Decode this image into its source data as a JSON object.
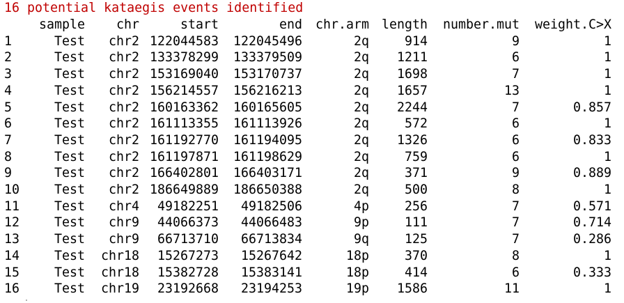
{
  "console": {
    "message": "16 potential kataegis events identified",
    "message_color": "#c00000",
    "text_color": "#000000",
    "background": "#ffffff",
    "table": {
      "columns": [
        "",
        "sample",
        "chr",
        "start",
        "end",
        "chr.arm",
        "length",
        "number.mut",
        "weight.C>X"
      ],
      "rows": [
        [
          "1",
          "Test",
          "chr2",
          "122044583",
          "122045496",
          "2q",
          "914",
          "9",
          "1"
        ],
        [
          "2",
          "Test",
          "chr2",
          "133378299",
          "133379509",
          "2q",
          "1211",
          "6",
          "1"
        ],
        [
          "3",
          "Test",
          "chr2",
          "153169040",
          "153170737",
          "2q",
          "1698",
          "7",
          "1"
        ],
        [
          "4",
          "Test",
          "chr2",
          "156214557",
          "156216213",
          "2q",
          "1657",
          "13",
          "1"
        ],
        [
          "5",
          "Test",
          "chr2",
          "160163362",
          "160165605",
          "2q",
          "2244",
          "7",
          "0.857"
        ],
        [
          "6",
          "Test",
          "chr2",
          "161113355",
          "161113926",
          "2q",
          "572",
          "6",
          "1"
        ],
        [
          "7",
          "Test",
          "chr2",
          "161192770",
          "161194095",
          "2q",
          "1326",
          "6",
          "0.833"
        ],
        [
          "8",
          "Test",
          "chr2",
          "161197871",
          "161198629",
          "2q",
          "759",
          "6",
          "1"
        ],
        [
          "9",
          "Test",
          "chr2",
          "166402801",
          "166403171",
          "2q",
          "371",
          "9",
          "0.889"
        ],
        [
          "10",
          "Test",
          "chr2",
          "186649889",
          "186650388",
          "2q",
          "500",
          "8",
          "1"
        ],
        [
          "11",
          "Test",
          "chr4",
          "49182251",
          "49182506",
          "4p",
          "256",
          "7",
          "0.571"
        ],
        [
          "12",
          "Test",
          "chr9",
          "44066373",
          "44066483",
          "9p",
          "111",
          "7",
          "0.714"
        ],
        [
          "13",
          "Test",
          "chr9",
          "66713710",
          "66713834",
          "9q",
          "125",
          "7",
          "0.286"
        ],
        [
          "14",
          "Test",
          "chr18",
          "15267273",
          "15267642",
          "18p",
          "370",
          "8",
          "1"
        ],
        [
          "15",
          "Test",
          "chr18",
          "15382728",
          "15383141",
          "18p",
          "414",
          "6",
          "0.333"
        ],
        [
          "16",
          "Test",
          "chr19",
          "23192668",
          "23194253",
          "19p",
          "1586",
          "11",
          "1"
        ]
      ]
    }
  }
}
